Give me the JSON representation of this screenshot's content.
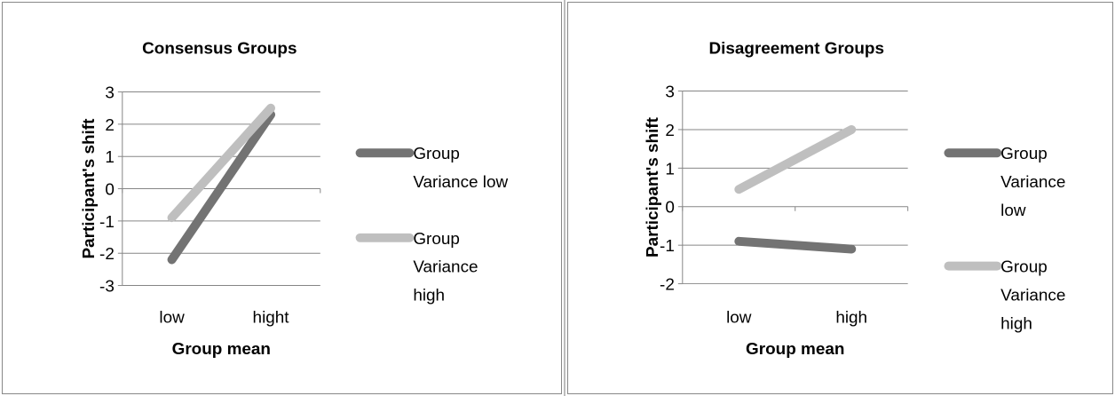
{
  "chart_data": [
    {
      "type": "line",
      "title": "Consensus Groups",
      "xlabel": "Group mean",
      "ylabel": "Participant's shift",
      "categories": [
        "low",
        "hight"
      ],
      "ylim": [
        -3,
        3
      ],
      "yticks": [
        "3",
        "2",
        "1",
        "0",
        "-1",
        "-2",
        "-3"
      ],
      "grid": true,
      "legend": "right",
      "series": [
        {
          "name": "Group Variance low",
          "legend_lines": [
            "Group",
            "Variance low"
          ],
          "values": [
            -2.2,
            2.3
          ],
          "color": "#737373"
        },
        {
          "name": "Group Variance high",
          "legend_lines": [
            "Group",
            "Variance",
            "high"
          ],
          "values": [
            -0.9,
            2.5
          ],
          "color": "#bfbfbf"
        }
      ]
    },
    {
      "type": "line",
      "title": "Disagreement Groups",
      "xlabel": "Group mean",
      "ylabel": "Participant's shift",
      "categories": [
        "low",
        "high"
      ],
      "ylim": [
        -2,
        3
      ],
      "yticks": [
        "3",
        "2",
        "1",
        "0",
        "-1",
        "-2"
      ],
      "grid": true,
      "legend": "right",
      "series": [
        {
          "name": "Group Variance low",
          "legend_lines": [
            "Group",
            "Variance",
            "low"
          ],
          "values": [
            -0.9,
            -1.1
          ],
          "color": "#737373"
        },
        {
          "name": "Group Variance high",
          "legend_lines": [
            "Group",
            "Variance",
            "high"
          ],
          "values": [
            0.45,
            2.0
          ],
          "color": "#bfbfbf"
        }
      ]
    }
  ]
}
